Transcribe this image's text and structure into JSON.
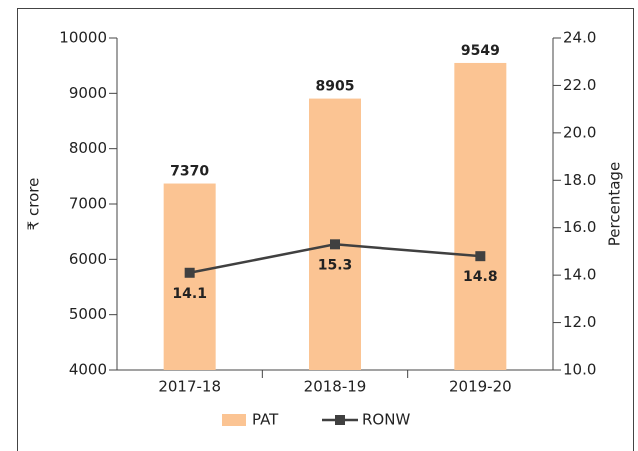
{
  "chart_data": {
    "type": "bar",
    "categories": [
      "2017-18",
      "2018-19",
      "2019-20"
    ],
    "series": [
      {
        "name": "PAT",
        "type": "bar",
        "color": "#fbc493",
        "values": [
          7370,
          8905,
          9549
        ]
      },
      {
        "name": "RONW",
        "type": "line",
        "axis": "y2",
        "color": "#404040",
        "values": [
          14.1,
          15.3,
          14.8
        ]
      }
    ],
    "ylabel": "₹ crore",
    "y2label": "Percentage",
    "ylim": [
      4000,
      10000
    ],
    "yticks": [
      4000,
      5000,
      6000,
      7000,
      8000,
      9000,
      10000
    ],
    "y2lim": [
      10,
      24
    ],
    "y2ticks": [
      {
        "value": 10,
        "label": "10.0"
      },
      {
        "value": 12,
        "label": "12.0"
      },
      {
        "value": 14,
        "label": "14.0"
      },
      {
        "value": 16,
        "label": "16.0"
      },
      {
        "value": 18,
        "label": "18.0"
      },
      {
        "value": 20,
        "label": "20.0"
      },
      {
        "value": 22,
        "label": "22.0"
      },
      {
        "value": 24,
        "label": "24.0"
      }
    ],
    "legend": "bottom"
  }
}
